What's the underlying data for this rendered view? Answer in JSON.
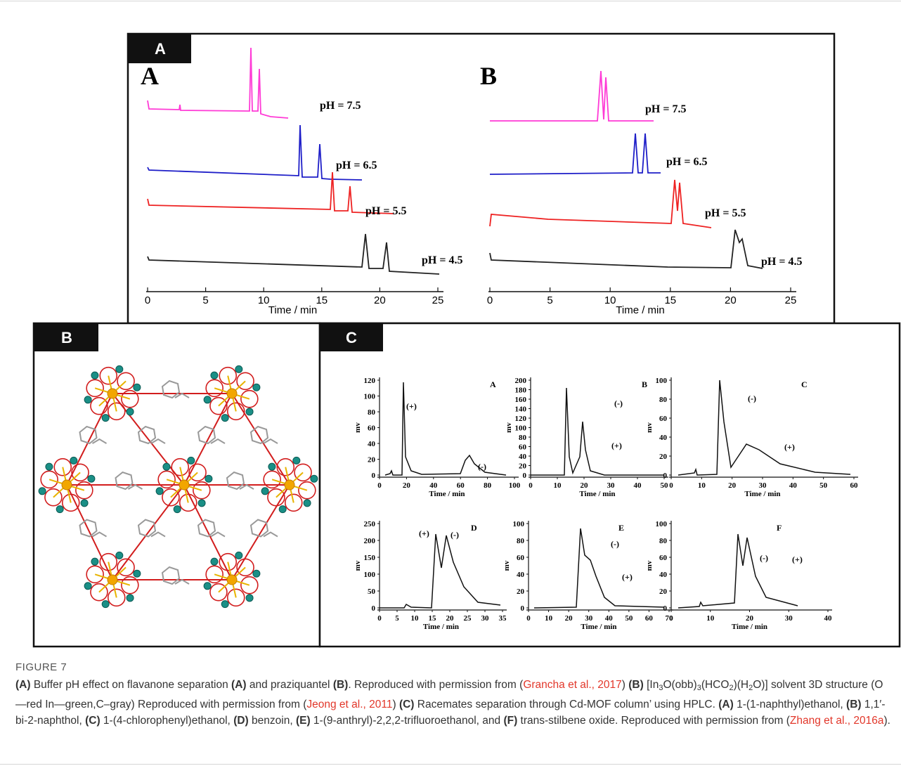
{
  "figure": {
    "panel_a": {
      "tag": "A",
      "subplots": [
        {
          "letter": "A",
          "traces": [
            "pH = 7.5",
            "pH = 6.5",
            "pH = 5.5",
            "pH = 4.5"
          ],
          "xticks": [
            0,
            5,
            10,
            15,
            20,
            25
          ],
          "xlabel": "Time / min"
        },
        {
          "letter": "B",
          "traces": [
            "pH = 7.5",
            "pH = 6.5",
            "pH = 5.5",
            "pH = 4.5"
          ],
          "xticks": [
            0,
            5,
            10,
            15,
            20,
            25
          ],
          "xlabel": "Time / min"
        }
      ]
    },
    "panel_b": {
      "tag": "B"
    },
    "panel_c": {
      "tag": "C",
      "subplots": [
        {
          "letter": "A",
          "ylabel": "mv",
          "yticks": [
            0,
            20,
            40,
            60,
            80,
            100,
            120
          ],
          "xticks": [
            0,
            20,
            40,
            60,
            80,
            100
          ],
          "xlabel": "Time / min",
          "annotations": [
            "(+)",
            "(-)"
          ]
        },
        {
          "letter": "B",
          "ylabel": "mv",
          "yticks": [
            0,
            20,
            40,
            60,
            80,
            100,
            120,
            140,
            160,
            180,
            200
          ],
          "xticks": [
            0,
            10,
            20,
            30,
            40,
            50
          ],
          "xlabel": "Time / min",
          "annotations": [
            "(-)",
            "(+)"
          ]
        },
        {
          "letter": "C",
          "ylabel": "mv",
          "yticks": [
            0,
            20,
            40,
            60,
            80,
            100
          ],
          "xticks": [
            0,
            10,
            20,
            30,
            40,
            50,
            60
          ],
          "xlabel": "Time / min",
          "annotations": [
            "(-)",
            "(+)"
          ]
        },
        {
          "letter": "D",
          "ylabel": "mv",
          "yticks": [
            0,
            50,
            100,
            150,
            200,
            250
          ],
          "xticks": [
            0,
            5,
            10,
            15,
            20,
            25,
            30,
            35
          ],
          "xlabel": "Time / min",
          "annotations": [
            "(+)",
            "(-)"
          ]
        },
        {
          "letter": "E",
          "ylabel": "mv",
          "yticks": [
            0,
            20,
            40,
            60,
            80,
            100
          ],
          "xticks": [
            0,
            10,
            20,
            30,
            40,
            50,
            60,
            70
          ],
          "xlabel": "Time / min",
          "annotations": [
            "(-)",
            "(+)"
          ]
        },
        {
          "letter": "F",
          "ylabel": "mv",
          "yticks": [
            0,
            20,
            40,
            60,
            80,
            100
          ],
          "xticks": [
            0,
            10,
            20,
            30,
            40
          ],
          "xlabel": "Time / min",
          "annotations": [
            "(-)",
            "(+)"
          ]
        }
      ]
    }
  },
  "caption": {
    "title": "FIGURE 7",
    "parts": [
      "(A)",
      " Buffer pH effect on flavanone separation ",
      "(A)",
      " and praziquantel ",
      "(B)",
      ". Reproduced with permission from (",
      "Grancha et al., 2017",
      ") ",
      "(B)",
      " [In",
      "3",
      "O(obb)",
      "3",
      "(HCO",
      "2",
      ")(H",
      "2",
      "O)] solvent 3D structure (O—red In—green,C–gray) Reproduced with permission from (",
      "Jeong et al., 2011",
      ") ",
      "(C)",
      " Racemates separation through Cd-MOF column’ using HPLC. ",
      "(A)",
      " 1-(1-naphthyl)ethanol, ",
      "(B)",
      " 1,1′-bi-2-naphthol, ",
      "(C)",
      " 1-(4-chlorophenyl)ethanol, ",
      "(D)",
      " benzoin, ",
      "(E)",
      " 1-(9-anthryl)-2,2,2-trifluoroethanol, and ",
      "(F)",
      " trans-stilbene oxide. Reproduced with permission from (",
      "Zhang et al., 2016a",
      ")."
    ]
  }
}
